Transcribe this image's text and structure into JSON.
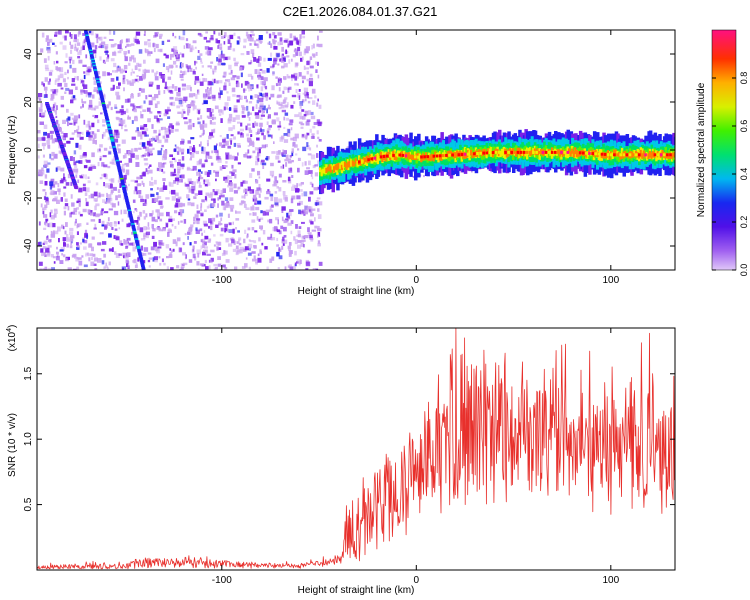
{
  "title": "C2E1.2026.084.01.37.G21",
  "colors": {
    "snr_line": "#e8302c",
    "axis": "#000000",
    "background": "#ffffff"
  },
  "chart_data": [
    {
      "type": "heatmap",
      "name": "spectrogram",
      "xlabel": "Height of straight line (km)",
      "ylabel": "Frequency (Hz)",
      "xlim": [
        -195,
        133
      ],
      "ylim": [
        -50,
        50
      ],
      "x_ticks": [
        -100,
        0,
        100
      ],
      "x_tick_labels": [
        "-100",
        "0",
        "100"
      ],
      "y_ticks": [
        -40,
        -20,
        0,
        20,
        40
      ],
      "y_tick_labels": [
        "-40",
        "-20",
        "0",
        "20",
        "40"
      ],
      "noise_region_x": [
        -195,
        -50
      ],
      "signal_trace": {
        "x": [
          -50,
          -40,
          -30,
          -20,
          -10,
          0,
          20,
          40,
          60,
          80,
          100,
          120,
          133
        ],
        "freq": [
          -9,
          -7,
          -5,
          -3,
          -2,
          -3,
          -2,
          -1,
          -1,
          -1,
          -2,
          -2,
          -2
        ]
      },
      "drift_streaks": [
        {
          "x": [
            -170,
            -140
          ],
          "freq": [
            50,
            -50
          ]
        },
        {
          "x": [
            -190,
            -175
          ],
          "freq": [
            20,
            -15
          ]
        }
      ],
      "colorbar": {
        "label": "Normalized spectral amplitude",
        "range": [
          0.0,
          1.0
        ],
        "ticks": [
          0.0,
          0.2,
          0.4,
          0.6,
          0.8
        ],
        "tick_labels": [
          "0.0",
          "0.2",
          "0.4",
          "0.6",
          "0.8"
        ],
        "colors": [
          "#c8a0f0",
          "#7a20e8",
          "#2020f0",
          "#00c8e8",
          "#00e060",
          "#60f000",
          "#f0f000",
          "#ff8000",
          "#ff0000",
          "#ff1090"
        ]
      }
    },
    {
      "type": "line",
      "name": "snr",
      "xlabel": "Height of straight line (km)",
      "ylabel": "SNR (10 * v/v)",
      "y_multiplier": "(x10",
      "y_multiplier_exp": "4",
      "y_multiplier_close": ")",
      "xlim": [
        -195,
        133
      ],
      "ylim": [
        0,
        1.85
      ],
      "x_ticks": [
        -100,
        0,
        100
      ],
      "x_tick_labels": [
        "-100",
        "0",
        "100"
      ],
      "y_ticks": [
        0.5,
        1.0,
        1.5
      ],
      "y_tick_labels": [
        "0.5",
        "1.0",
        "1.5"
      ],
      "envelope": {
        "x": [
          -195,
          -150,
          -140,
          -60,
          -38,
          -36,
          -34,
          -30,
          -25,
          -20,
          -15,
          -10,
          -5,
          0,
          5,
          10,
          15,
          20,
          30,
          40,
          50,
          60,
          70,
          80,
          90,
          100,
          110,
          120,
          133
        ],
        "mean": [
          0.02,
          0.03,
          0.06,
          0.03,
          0.08,
          0.3,
          0.35,
          0.3,
          0.42,
          0.5,
          0.55,
          0.6,
          0.62,
          0.75,
          0.85,
          0.95,
          1.0,
          1.05,
          1.1,
          1.1,
          1.1,
          1.05,
          1.05,
          1.0,
          1.0,
          1.0,
          0.98,
          0.95,
          0.95
        ],
        "spread": [
          0.02,
          0.03,
          0.05,
          0.02,
          0.05,
          0.25,
          0.3,
          0.4,
          0.35,
          0.4,
          0.45,
          0.4,
          0.45,
          0.45,
          0.55,
          0.6,
          0.65,
          0.7,
          0.75,
          0.65,
          0.6,
          0.65,
          0.6,
          0.65,
          0.7,
          0.7,
          0.6,
          0.6,
          0.6
        ]
      }
    }
  ]
}
